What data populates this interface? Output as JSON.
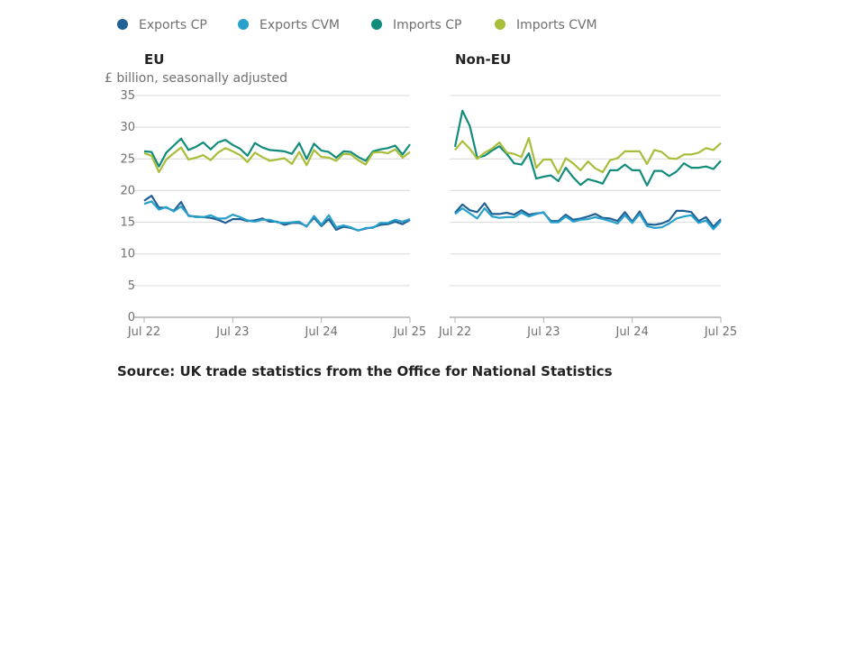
{
  "chart_data": {
    "type": "line",
    "y_unit_label": "£ billion, seasonally adjusted",
    "ylim": [
      0,
      35
    ],
    "yticks": [
      0,
      5,
      10,
      15,
      20,
      25,
      30,
      35
    ],
    "xticks": [
      "Jul 22",
      "Jul 23",
      "Jul 24",
      "Jul 25"
    ],
    "legend_position": "top",
    "grid": true,
    "series_meta": [
      {
        "name": "Exports CP",
        "color": "#206095"
      },
      {
        "name": "Exports CVM",
        "color": "#27a0cc"
      },
      {
        "name": "Imports CP",
        "color": "#118c7b"
      },
      {
        "name": "Imports CVM",
        "color": "#a8bd3a"
      }
    ],
    "panels": [
      {
        "title": "EU",
        "series": [
          {
            "name": "Exports CP",
            "values": [
              18.4,
              19.2,
              17.3,
              17.3,
              16.8,
              18.2,
              16.0,
              15.9,
              15.8,
              15.7,
              15.4,
              14.9,
              15.5,
              15.5,
              15.2,
              15.3,
              15.6,
              15.1,
              15.1,
              14.6,
              14.9,
              14.9,
              14.4,
              15.7,
              14.4,
              15.5,
              13.8,
              14.3,
              14.1,
              13.7,
              14.0,
              14.2,
              14.6,
              14.7,
              15.1,
              14.7,
              15.4
            ]
          },
          {
            "name": "Exports CVM",
            "values": [
              17.9,
              18.3,
              17.0,
              17.4,
              16.7,
              17.5,
              16.1,
              15.8,
              15.8,
              16.1,
              15.6,
              15.6,
              16.2,
              15.8,
              15.3,
              15.1,
              15.4,
              15.4,
              15.0,
              14.9,
              15.0,
              15.1,
              14.3,
              16.0,
              14.6,
              16.1,
              14.2,
              14.5,
              14.2,
              13.7,
              14.1,
              14.1,
              14.9,
              14.9,
              15.4,
              15.1,
              15.5
            ]
          },
          {
            "name": "Imports CP",
            "values": [
              26.2,
              26.1,
              23.8,
              26.0,
              27.1,
              28.2,
              26.4,
              26.9,
              27.6,
              26.5,
              27.6,
              28.0,
              27.2,
              26.6,
              25.5,
              27.5,
              26.8,
              26.4,
              26.3,
              26.2,
              25.8,
              27.5,
              25.0,
              27.4,
              26.3,
              26.1,
              25.2,
              26.2,
              26.1,
              25.3,
              24.7,
              26.2,
              26.5,
              26.7,
              27.1,
              25.7,
              27.3
            ]
          },
          {
            "name": "Imports CVM",
            "values": [
              25.9,
              25.5,
              22.9,
              24.9,
              25.9,
              26.8,
              24.9,
              25.2,
              25.6,
              24.8,
              26.0,
              26.7,
              26.2,
              25.6,
              24.5,
              26.0,
              25.3,
              24.7,
              24.9,
              25.1,
              24.2,
              26.1,
              24.0,
              26.4,
              25.3,
              25.2,
              24.7,
              25.8,
              25.7,
              24.8,
              24.1,
              26.0,
              26.1,
              25.9,
              26.5,
              25.2,
              26.1
            ]
          }
        ]
      },
      {
        "title": "Non-EU",
        "series": [
          {
            "name": "Exports CP",
            "values": [
              16.5,
              17.8,
              16.9,
              16.6,
              18.0,
              16.3,
              16.3,
              16.5,
              16.2,
              16.9,
              16.2,
              16.4,
              16.5,
              15.2,
              15.2,
              16.2,
              15.4,
              15.6,
              15.9,
              16.3,
              15.7,
              15.6,
              15.2,
              16.6,
              15.1,
              16.7,
              14.7,
              14.6,
              14.8,
              15.3,
              16.8,
              16.8,
              16.6,
              15.2,
              15.8,
              14.3,
              15.5
            ]
          },
          {
            "name": "Exports CVM",
            "values": [
              16.3,
              17.2,
              16.4,
              15.6,
              17.2,
              15.9,
              15.7,
              15.8,
              15.8,
              16.5,
              15.9,
              16.3,
              16.6,
              15.0,
              15.0,
              15.9,
              15.1,
              15.4,
              15.5,
              15.8,
              15.5,
              15.2,
              14.8,
              16.1,
              14.9,
              16.3,
              14.4,
              14.1,
              14.2,
              14.8,
              15.6,
              15.9,
              16.1,
              14.9,
              15.3,
              13.9,
              15.2
            ]
          },
          {
            "name": "Imports CP",
            "values": [
              26.9,
              32.6,
              30.2,
              25.2,
              25.5,
              26.3,
              27.0,
              25.8,
              24.3,
              24.1,
              25.9,
              21.9,
              22.2,
              22.4,
              21.5,
              23.6,
              22.1,
              20.9,
              21.8,
              21.5,
              21.1,
              23.2,
              23.2,
              24.1,
              23.2,
              23.2,
              20.8,
              23.1,
              23.1,
              22.3,
              23.0,
              24.3,
              23.6,
              23.6,
              23.8,
              23.4,
              24.7
            ]
          },
          {
            "name": "Imports CVM",
            "values": [
              26.4,
              27.8,
              26.6,
              25.0,
              26.0,
              26.6,
              27.6,
              26.0,
              25.8,
              25.3,
              28.3,
              23.6,
              24.9,
              24.9,
              22.7,
              25.1,
              24.3,
              23.2,
              24.6,
              23.5,
              22.9,
              24.8,
              25.1,
              26.2,
              26.2,
              26.2,
              24.2,
              26.4,
              26.1,
              25.1,
              25.0,
              25.7,
              25.7,
              26.0,
              26.7,
              26.4,
              27.5
            ]
          }
        ]
      }
    ]
  },
  "source_text": "Source: UK trade statistics from the Office for National Statistics"
}
